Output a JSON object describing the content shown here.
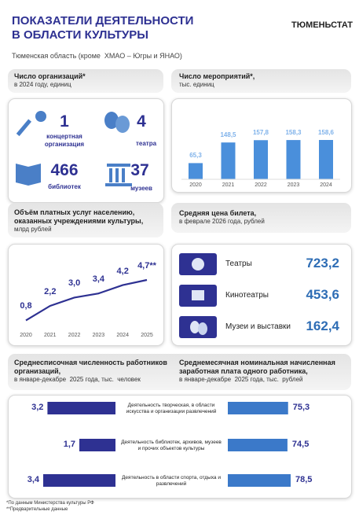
{
  "header": {
    "title": "ПОКАЗАТЕЛИ ДЕЯТЕЛЬНОСТИ В ОБЛАСТИ КУЛЬТУРЫ",
    "brand": "ТЮМЕНЬСТАТ",
    "subtitle": "Тюменская область (кроме  ХМАО – Югры и ЯНАО)"
  },
  "organizations": {
    "title": "Число организаций*",
    "subtitle": "в 2024 году, единиц",
    "items": [
      {
        "value": 1,
        "label": "концертная организация"
      },
      {
        "value": 4,
        "label": "театра"
      },
      {
        "value": 466,
        "label": "библиотек"
      },
      {
        "value": 37,
        "label": "музеев"
      }
    ]
  },
  "ticket_prices": {
    "title": "Средняя цена билета,",
    "subtitle": "в феврале 2026 года, рублей",
    "rows": [
      {
        "label": "Театры",
        "price": "723,2"
      },
      {
        "label": "Кинотеатры",
        "price": "453,6"
      },
      {
        "label": "Музеи и выставки",
        "price": "162,4"
      }
    ]
  },
  "chart_data": [
    {
      "type": "bar",
      "title": "Число мероприятий*,",
      "subtitle": "тыс. единиц",
      "categories": [
        "2020",
        "2021",
        "2022",
        "2023",
        "2024"
      ],
      "values": [
        65.3,
        148.5,
        157.8,
        158.3,
        158.6
      ],
      "value_labels": [
        "65,3",
        "148,5",
        "157,8",
        "158,3",
        "158,6"
      ],
      "color": "#4a8fdb",
      "label_color": "#7fb2ea"
    },
    {
      "type": "line",
      "title": "Объём платных услуг населению, оказанных учреждениями культуры,",
      "subtitle": "млрд рублей",
      "categories": [
        "2020",
        "2021",
        "2022",
        "2023",
        "2024",
        "2025"
      ],
      "values": [
        0.8,
        2.2,
        3.0,
        3.4,
        4.2,
        4.7
      ],
      "value_labels": [
        "0,8",
        "2,2",
        "3,0",
        "3,4",
        "4,2",
        "4,7**"
      ],
      "color": "#2e3192"
    },
    {
      "type": "hbar",
      "direction": "left",
      "title": "Среднесписочная численность работников организаций,",
      "subtitle": "в январе-декабре  2025 года, тыс.  человек",
      "categories": [
        "Деятельность творческая, в области искусства и организации развлечений",
        "Деятельность библиотек, архивов, музеев и прочих объектов культуры",
        "Деятельность в области спорта, отдыха и развлечений"
      ],
      "values": [
        3.2,
        1.7,
        3.4
      ],
      "value_labels": [
        "3,2",
        "1,7",
        "3,4"
      ],
      "color": "#2e3192"
    },
    {
      "type": "hbar",
      "direction": "right",
      "title": "Среднемесячная номинальная начисленная заработная плата одного работника,",
      "subtitle": "в январе-декабре  2025 года, тыс.  рублей",
      "values": [
        75.3,
        74.5,
        78.5
      ],
      "value_labels": [
        "75,3",
        "74,5",
        "78,5"
      ],
      "color": "#3b79c9"
    }
  ],
  "footnotes": [
    "*По данным Министерства культуры РФ",
    "**Предварительные данные"
  ]
}
